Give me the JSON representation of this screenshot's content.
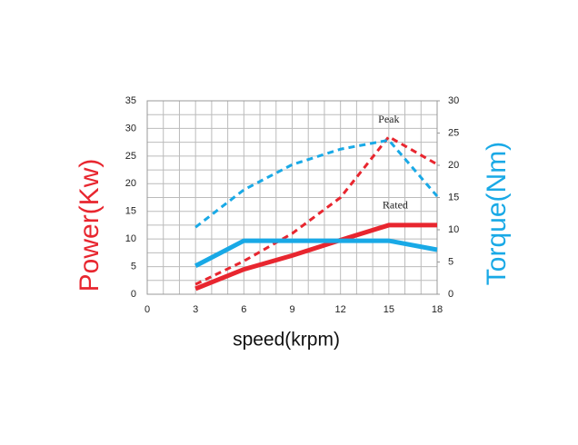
{
  "chart_data": {
    "type": "line",
    "x_label": "speed(krpm)",
    "y_label": "Power(Kw)",
    "y2_label": "Torque(Nm)",
    "x": [
      3,
      6,
      9,
      12,
      15,
      18
    ],
    "xlim": [
      0,
      18
    ],
    "xticks": [
      0,
      3,
      6,
      9,
      12,
      15,
      18
    ],
    "ylim": [
      0,
      35
    ],
    "yticks": [
      0,
      5,
      10,
      15,
      20,
      25,
      30,
      35
    ],
    "y2lim": [
      0,
      30
    ],
    "y2ticks": [
      0,
      5,
      10,
      15,
      20,
      25,
      30
    ],
    "grid": true,
    "y_label_color": "#e8262f",
    "y2_label_color": "#19a9e6",
    "annotations": [
      {
        "text": "Peak",
        "x": 15,
        "y": 31.5
      },
      {
        "text": "Rated",
        "x": 15.4,
        "y": 16
      }
    ],
    "series": [
      {
        "color": "#e8262f",
        "style": "solid",
        "values": [
          1,
          4.5,
          7,
          9.8,
          12.5,
          12.5
        ]
      },
      {
        "color": "#e8262f",
        "style": "dashed",
        "values": [
          1.8,
          6,
          11,
          17.5,
          28.5,
          23.5
        ]
      },
      {
        "color": "#19a9e6",
        "style": "solid",
        "axis": "y2",
        "values": [
          4.4,
          8.3,
          8.3,
          8.3,
          8.3,
          6.9
        ]
      },
      {
        "color": "#19a9e6",
        "style": "dashed",
        "axis": "y2",
        "values": [
          10.4,
          16.2,
          20.1,
          22.5,
          23.9,
          15.2
        ]
      }
    ]
  }
}
